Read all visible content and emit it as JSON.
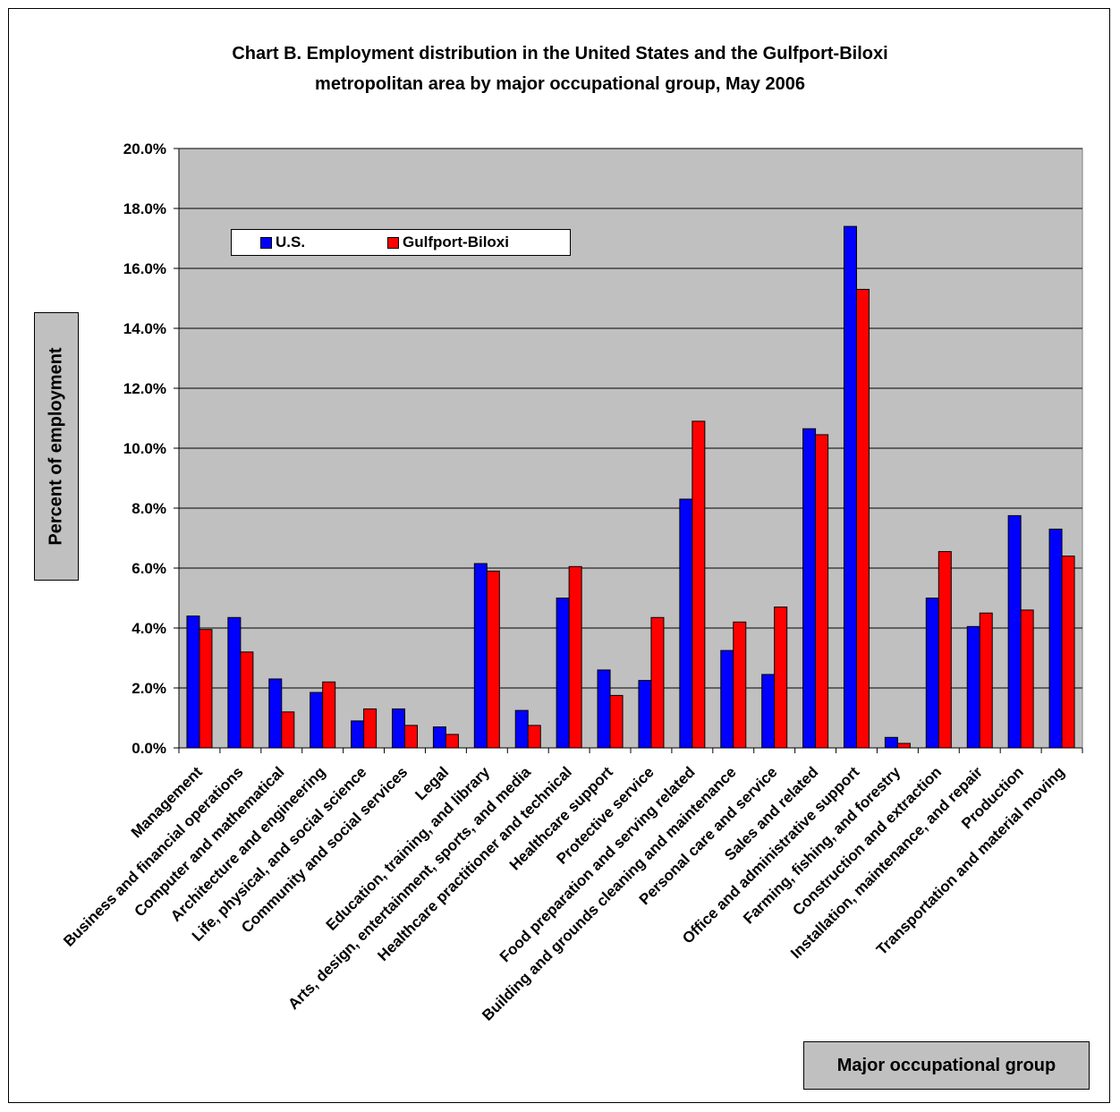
{
  "chart_data": {
    "type": "bar",
    "title_line1": "Chart B. Employment distribution in the United States and the Gulfport-Biloxi",
    "title_line2": "metropolitan area by major occupational group, May 2006",
    "xlabel": "Major occupational group",
    "ylabel": "Percent of employment",
    "ylim": [
      0,
      20
    ],
    "y_ticks": [
      "0.0%",
      "2.0%",
      "4.0%",
      "6.0%",
      "8.0%",
      "10.0%",
      "12.0%",
      "14.0%",
      "16.0%",
      "18.0%",
      "20.0%"
    ],
    "grid": true,
    "legend_placement": "top-left",
    "plot_background": "#c0c0c0",
    "categories": [
      "Management",
      "Business and financial operations",
      "Computer and mathematical",
      "Architecture and engineering",
      "Life, physical, and social science",
      "Community and social services",
      "Legal",
      "Education, training, and library",
      "Arts, design, entertainment, sports, and media",
      "Healthcare practitioner and technical",
      "Healthcare support",
      "Protective service",
      "Food preparation and serving related",
      "Building and grounds cleaning and maintenance",
      "Personal care and service",
      "Sales and related",
      "Office and administrative support",
      "Farming, fishing, and forestry",
      "Construction and extraction",
      "Installation, maintenance, and repair",
      "Production",
      "Transportation and material moving"
    ],
    "series": [
      {
        "name": "U.S.",
        "color": "#0000ff",
        "values": [
          4.4,
          4.35,
          2.3,
          1.85,
          0.9,
          1.3,
          0.7,
          6.15,
          1.25,
          5.0,
          2.6,
          2.25,
          8.3,
          3.25,
          2.45,
          10.65,
          17.4,
          0.35,
          5.0,
          4.05,
          7.75,
          7.3
        ]
      },
      {
        "name": "Gulfport-Biloxi",
        "color": "#ff0000",
        "values": [
          3.95,
          3.2,
          1.2,
          2.2,
          1.3,
          0.75,
          0.45,
          5.9,
          0.75,
          6.05,
          1.75,
          4.35,
          10.9,
          4.2,
          4.7,
          10.45,
          15.3,
          0.15,
          6.55,
          4.5,
          4.6,
          6.4
        ]
      }
    ]
  }
}
